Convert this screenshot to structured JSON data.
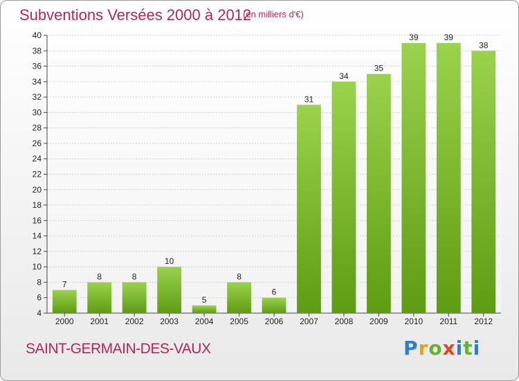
{
  "header": {
    "title": "Subventions Versées 2000 à 2012",
    "unit_note": "(en milliers d'€)"
  },
  "footer": {
    "commune": "SAINT-GERMAIN-DES-VAUX",
    "logo": [
      "P",
      "r",
      "o",
      "x",
      "i",
      "t",
      "i"
    ]
  },
  "colors": {
    "title": "#b4265a",
    "bar_light": "#9ad24c",
    "bar_dark": "#5e9c12",
    "grid": "#cfcfcf"
  },
  "chart_data": {
    "type": "bar",
    "categories": [
      "2000",
      "2001",
      "2002",
      "2003",
      "2004",
      "2005",
      "2006",
      "2007",
      "2008",
      "2009",
      "2010",
      "2011",
      "2012"
    ],
    "values": [
      7,
      8,
      8,
      10,
      5,
      8,
      6,
      31,
      34,
      35,
      39,
      39,
      38
    ],
    "ylim": [
      4,
      40
    ],
    "yticks": [
      4,
      6,
      8,
      10,
      12,
      14,
      16,
      18,
      20,
      22,
      24,
      26,
      28,
      30,
      32,
      34,
      36,
      38,
      40
    ],
    "grid": true,
    "legend": "none"
  }
}
